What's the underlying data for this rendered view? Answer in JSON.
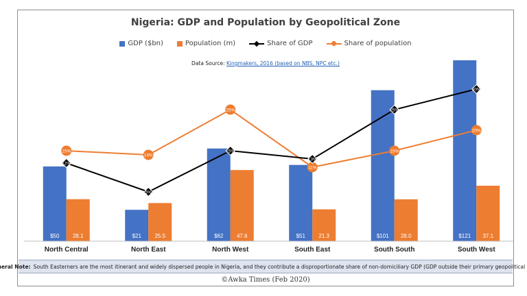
{
  "chart_data": {
    "type": "bar",
    "title": "Nigeria: GDP and Population by Geopolitical Zone",
    "categories": [
      "North Central",
      "North East",
      "North West",
      "South East",
      "South South",
      "South West"
    ],
    "series": [
      {
        "name": "GDP ($bn)",
        "kind": "bar",
        "color": "#4472c4",
        "values": [
          50,
          21,
          62,
          51,
          101,
          121
        ],
        "labels": [
          "$50",
          "$21",
          "$62",
          "$51",
          "$101",
          "$121"
        ]
      },
      {
        "name": "Population (m)",
        "kind": "bar",
        "color": "#ed7d31",
        "values": [
          28.1,
          25.5,
          47.6,
          21.3,
          28.0,
          37.1
        ],
        "labels": [
          "28.1",
          "25.5",
          "47.6",
          "21.3",
          "28.0",
          "37.1"
        ]
      },
      {
        "name": "Share of GDP",
        "kind": "line",
        "color": "#000000",
        "marker": "diamond",
        "values": [
          12,
          5,
          15,
          13,
          25,
          30
        ],
        "labels": [
          "12%",
          "5%",
          "15%",
          "13%",
          "25%",
          "30%"
        ]
      },
      {
        "name": "Share of population",
        "kind": "line",
        "color": "#ed7d31",
        "marker": "circle",
        "values": [
          15,
          14,
          25,
          11,
          15,
          20
        ],
        "labels": [
          "15%",
          "14%",
          "25%",
          "11%",
          "15%",
          "20%"
        ]
      }
    ],
    "bar_axis_max": 121,
    "share_axis_range": [
      -7,
      37
    ],
    "grid": false,
    "legend": "top-center"
  },
  "source": {
    "label": "Data Source:",
    "link_text": "Kingmakers, 2016 (based on NBS, NPC etc.)"
  },
  "note": {
    "label": "General Note:",
    "text": "South Easterners are the most itinerant and widely dispersed people in Nigeria, and they contribute a disproportionate share of non-domiciliary GDP (GDP outside their primary geopolitical zone)"
  },
  "copyright": "©Awka Times (Feb 2020)"
}
